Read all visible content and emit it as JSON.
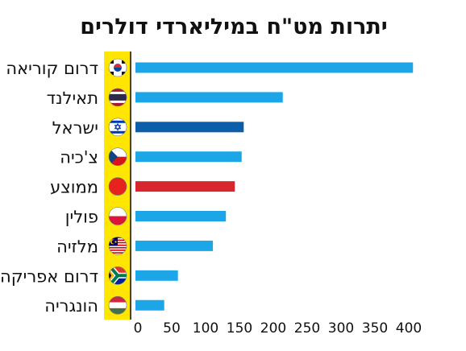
{
  "chart_data": {
    "type": "bar",
    "orientation": "horizontal",
    "title": "יתרות מט\"ח במיליארדי דולרים",
    "categories": [
      "דרום קוריאה",
      "תאילנד",
      "ישראל",
      "צ'כיה",
      "ממוצע",
      "פולין",
      "מלזיה",
      "דרום אפריקה",
      "הונגריה"
    ],
    "values": [
      405,
      215,
      158,
      155,
      145,
      132,
      113,
      62,
      42
    ],
    "bar_colors": [
      "#1ca6e8",
      "#1ca6e8",
      "#0c5ea8",
      "#1ca6e8",
      "#d7262d",
      "#1ca6e8",
      "#1ca6e8",
      "#1ca6e8",
      "#1ca6e8"
    ],
    "flags": [
      "south-korea-flag-icon",
      "thailand-flag-icon",
      "israel-flag-icon",
      "czech-flag-icon",
      "average-dot-icon",
      "poland-flag-icon",
      "malaysia-flag-icon",
      "south-africa-flag-icon",
      "hungary-flag-icon"
    ],
    "x_ticks": [
      0,
      50,
      100,
      150,
      200,
      250,
      300,
      350,
      400
    ],
    "xlim": [
      0,
      405
    ],
    "xlabel": "",
    "ylabel": "",
    "grid": false,
    "legend": "none",
    "accent_strip_color": "#ffe600"
  }
}
